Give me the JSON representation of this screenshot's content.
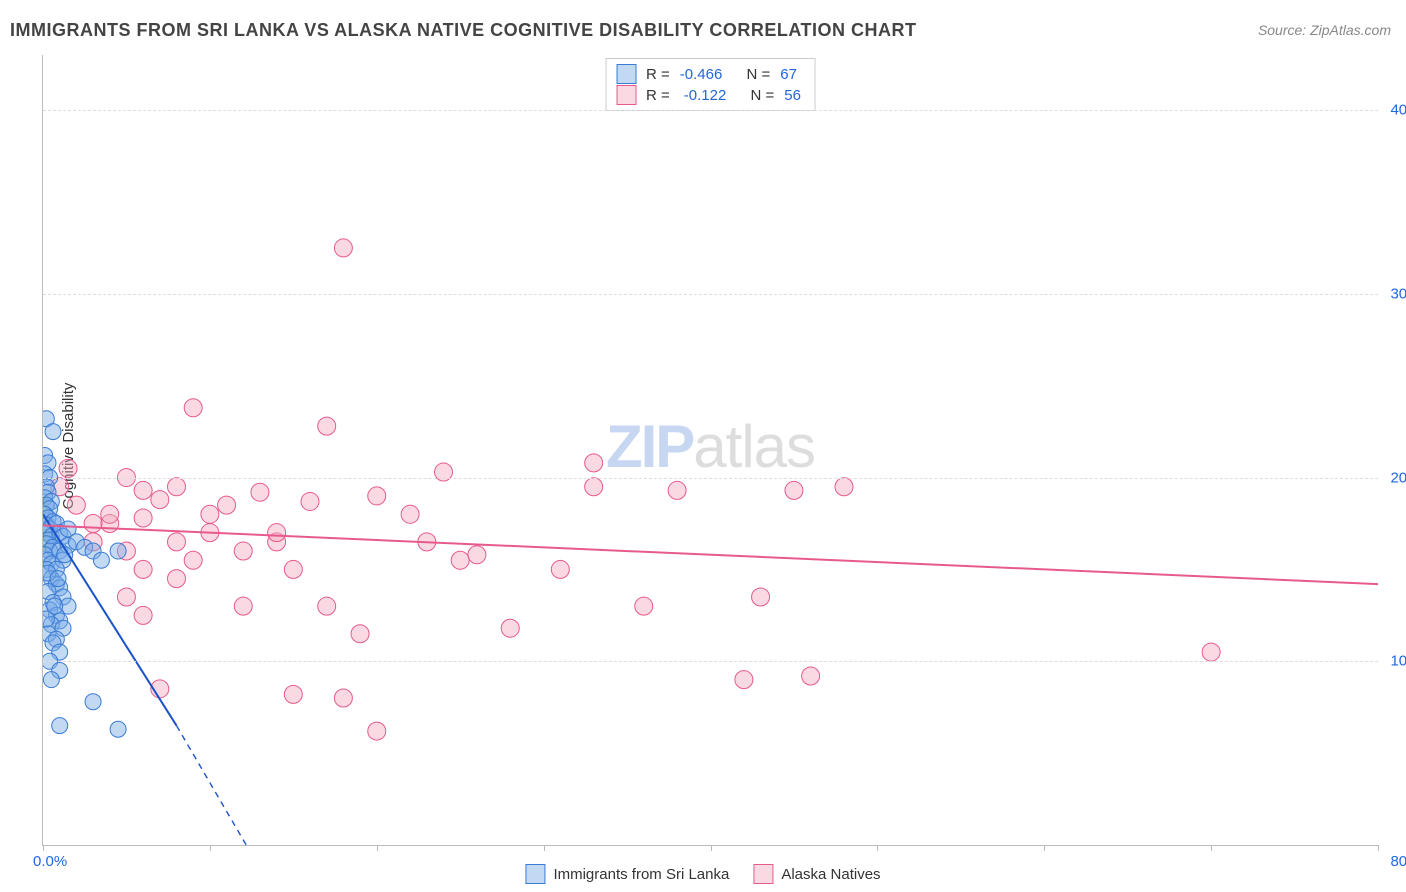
{
  "title": "IMMIGRANTS FROM SRI LANKA VS ALASKA NATIVE COGNITIVE DISABILITY CORRELATION CHART",
  "source_prefix": "Source: ",
  "source_name": "ZipAtlas.com",
  "yaxis_title": "Cognitive Disability",
  "watermark_a": "ZIP",
  "watermark_b": "atlas",
  "chart": {
    "type": "scatter",
    "xlim": [
      0,
      80
    ],
    "ylim": [
      0,
      43
    ],
    "x_label_min": "0.0%",
    "x_label_max": "80.0%",
    "x_ticks": [
      0,
      10,
      20,
      30,
      40,
      50,
      60,
      70,
      80
    ],
    "y_gridlines": [
      10,
      20,
      30,
      40
    ],
    "y_labels": [
      "10.0%",
      "20.0%",
      "30.0%",
      "40.0%"
    ],
    "background": "#ffffff",
    "grid_color": "#dddddd",
    "axis_color": "#bbbbbb",
    "tick_label_color": "#2266dd",
    "series": [
      {
        "name": "Immigrants from Sri Lanka",
        "fill": "rgba(120,170,230,0.45)",
        "stroke": "#3a7bd5",
        "marker_r": 8,
        "trend": {
          "x1": 0,
          "y1": 18.0,
          "x2": 8,
          "y2": 6.5,
          "color": "#1a52c9",
          "width": 2
        },
        "trend_dash": {
          "x1": 8,
          "y1": 6.5,
          "x2": 12.5,
          "y2": -0.5,
          "color": "#1a52c9",
          "width": 1.4
        },
        "R": "-0.466",
        "N": "67",
        "points": [
          [
            0.2,
            23.2
          ],
          [
            0.6,
            22.5
          ],
          [
            0.1,
            21.2
          ],
          [
            0.3,
            20.8
          ],
          [
            0.1,
            20.2
          ],
          [
            0.4,
            20.0
          ],
          [
            0.2,
            19.5
          ],
          [
            0.3,
            19.2
          ],
          [
            0.1,
            18.9
          ],
          [
            0.5,
            18.7
          ],
          [
            0.2,
            18.5
          ],
          [
            0.4,
            18.3
          ],
          [
            0.1,
            18.0
          ],
          [
            0.3,
            17.8
          ],
          [
            0.6,
            17.6
          ],
          [
            0.2,
            17.4
          ],
          [
            0.4,
            17.2
          ],
          [
            0.1,
            17.0
          ],
          [
            0.5,
            16.8
          ],
          [
            0.3,
            16.6
          ],
          [
            0.2,
            16.4
          ],
          [
            0.6,
            16.2
          ],
          [
            0.4,
            16.0
          ],
          [
            0.1,
            15.8
          ],
          [
            0.3,
            15.5
          ],
          [
            0.5,
            15.3
          ],
          [
            0.2,
            15.0
          ],
          [
            0.8,
            17.5
          ],
          [
            1.0,
            17.0
          ],
          [
            1.2,
            16.8
          ],
          [
            1.0,
            16.0
          ],
          [
            1.5,
            16.3
          ],
          [
            1.2,
            15.5
          ],
          [
            0.8,
            15.0
          ],
          [
            1.5,
            17.2
          ],
          [
            2.0,
            16.5
          ],
          [
            2.5,
            16.2
          ],
          [
            3.0,
            16.0
          ],
          [
            4.5,
            16.0
          ],
          [
            3.5,
            15.5
          ],
          [
            0.5,
            14.5
          ],
          [
            0.8,
            14.2
          ],
          [
            1.0,
            14.0
          ],
          [
            0.3,
            13.8
          ],
          [
            1.2,
            13.5
          ],
          [
            0.6,
            13.2
          ],
          [
            1.5,
            13.0
          ],
          [
            0.4,
            12.8
          ],
          [
            0.8,
            12.5
          ],
          [
            1.0,
            12.2
          ],
          [
            0.5,
            12.0
          ],
          [
            1.2,
            11.8
          ],
          [
            0.3,
            11.5
          ],
          [
            0.8,
            11.2
          ],
          [
            0.6,
            11.0
          ],
          [
            1.0,
            10.5
          ],
          [
            0.4,
            10.0
          ],
          [
            1.0,
            9.5
          ],
          [
            0.5,
            9.0
          ],
          [
            3.0,
            7.8
          ],
          [
            1.0,
            6.5
          ],
          [
            4.5,
            6.3
          ],
          [
            0.3,
            14.8
          ],
          [
            0.7,
            13.0
          ],
          [
            0.2,
            12.3
          ],
          [
            0.9,
            14.5
          ],
          [
            1.3,
            15.8
          ]
        ]
      },
      {
        "name": "Alaska Natives",
        "fill": "rgba(244,170,190,0.45)",
        "stroke": "#e75a8d",
        "marker_r": 9,
        "trend": {
          "x1": 0,
          "y1": 17.4,
          "x2": 80,
          "y2": 14.2,
          "color": "#e75a8d",
          "width": 2
        },
        "R": "-0.122",
        "N": "56",
        "points": [
          [
            18,
            32.5
          ],
          [
            9,
            23.8
          ],
          [
            17,
            22.8
          ],
          [
            24,
            20.3
          ],
          [
            33,
            20.8
          ],
          [
            1.5,
            20.5
          ],
          [
            1.0,
            19.5
          ],
          [
            5,
            20.0
          ],
          [
            7,
            18.8
          ],
          [
            6,
            19.3
          ],
          [
            11,
            18.5
          ],
          [
            13,
            19.2
          ],
          [
            16,
            18.7
          ],
          [
            8,
            19.5
          ],
          [
            20,
            19.0
          ],
          [
            22,
            18.0
          ],
          [
            10,
            17.0
          ],
          [
            4,
            17.5
          ],
          [
            14,
            16.5
          ],
          [
            26,
            15.8
          ],
          [
            15,
            15.0
          ],
          [
            12,
            13.0
          ],
          [
            19,
            11.5
          ],
          [
            6,
            12.5
          ],
          [
            8,
            14.5
          ],
          [
            17,
            13.0
          ],
          [
            33,
            19.5
          ],
          [
            38,
            19.3
          ],
          [
            45,
            19.3
          ],
          [
            48,
            19.5
          ],
          [
            36,
            13.0
          ],
          [
            43,
            13.5
          ],
          [
            28,
            11.8
          ],
          [
            15,
            8.2
          ],
          [
            18,
            8.0
          ],
          [
            20,
            6.2
          ],
          [
            7,
            8.5
          ],
          [
            3,
            17.5
          ],
          [
            4,
            18.0
          ],
          [
            2,
            18.5
          ],
          [
            3,
            16.5
          ],
          [
            5,
            16.0
          ],
          [
            9,
            15.5
          ],
          [
            12,
            16.0
          ],
          [
            14,
            17.0
          ],
          [
            31,
            15.0
          ],
          [
            25,
            15.5
          ],
          [
            23,
            16.5
          ],
          [
            70,
            10.5
          ],
          [
            42,
            9.0
          ],
          [
            46,
            9.2
          ],
          [
            6,
            17.8
          ],
          [
            8,
            16.5
          ],
          [
            10,
            18.0
          ],
          [
            6,
            15.0
          ],
          [
            5,
            13.5
          ]
        ]
      }
    ]
  },
  "stats_labels": {
    "R": "R =",
    "N": "N ="
  }
}
